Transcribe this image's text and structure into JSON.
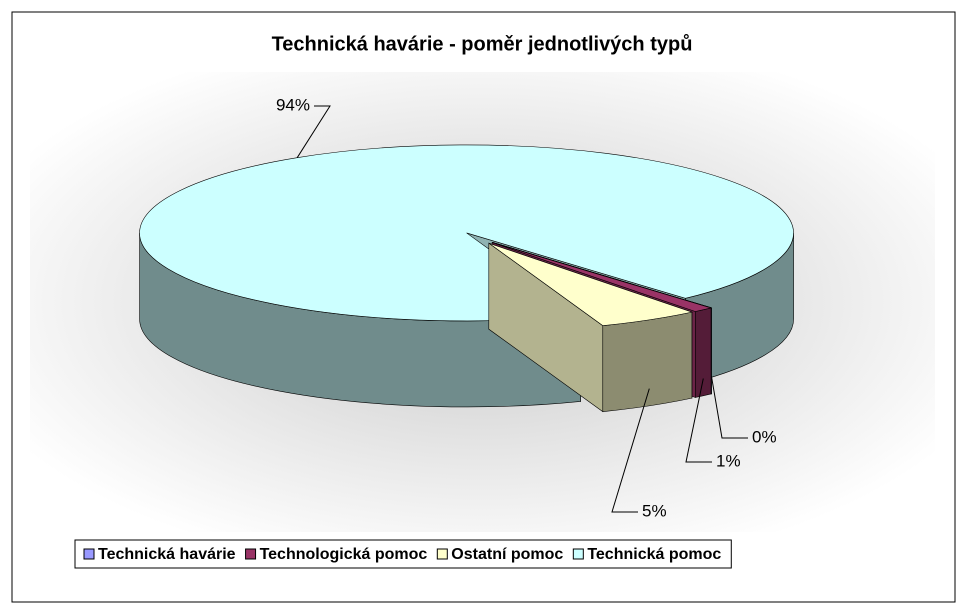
{
  "chart_data": {
    "type": "pie",
    "title": "Technická havárie - poměr jednotlivých typů",
    "categories": [
      "Technická havárie",
      "Technologická pomoc",
      "Ostatní pomoc",
      "Technická pomoc"
    ],
    "values": [
      0,
      1,
      5,
      94
    ],
    "value_labels": [
      "0%",
      "1%",
      "5%",
      "94%"
    ],
    "colors": [
      "#9999ff",
      "#993366",
      "#ffffcc",
      "#ccffff"
    ],
    "legend": "bottom"
  }
}
